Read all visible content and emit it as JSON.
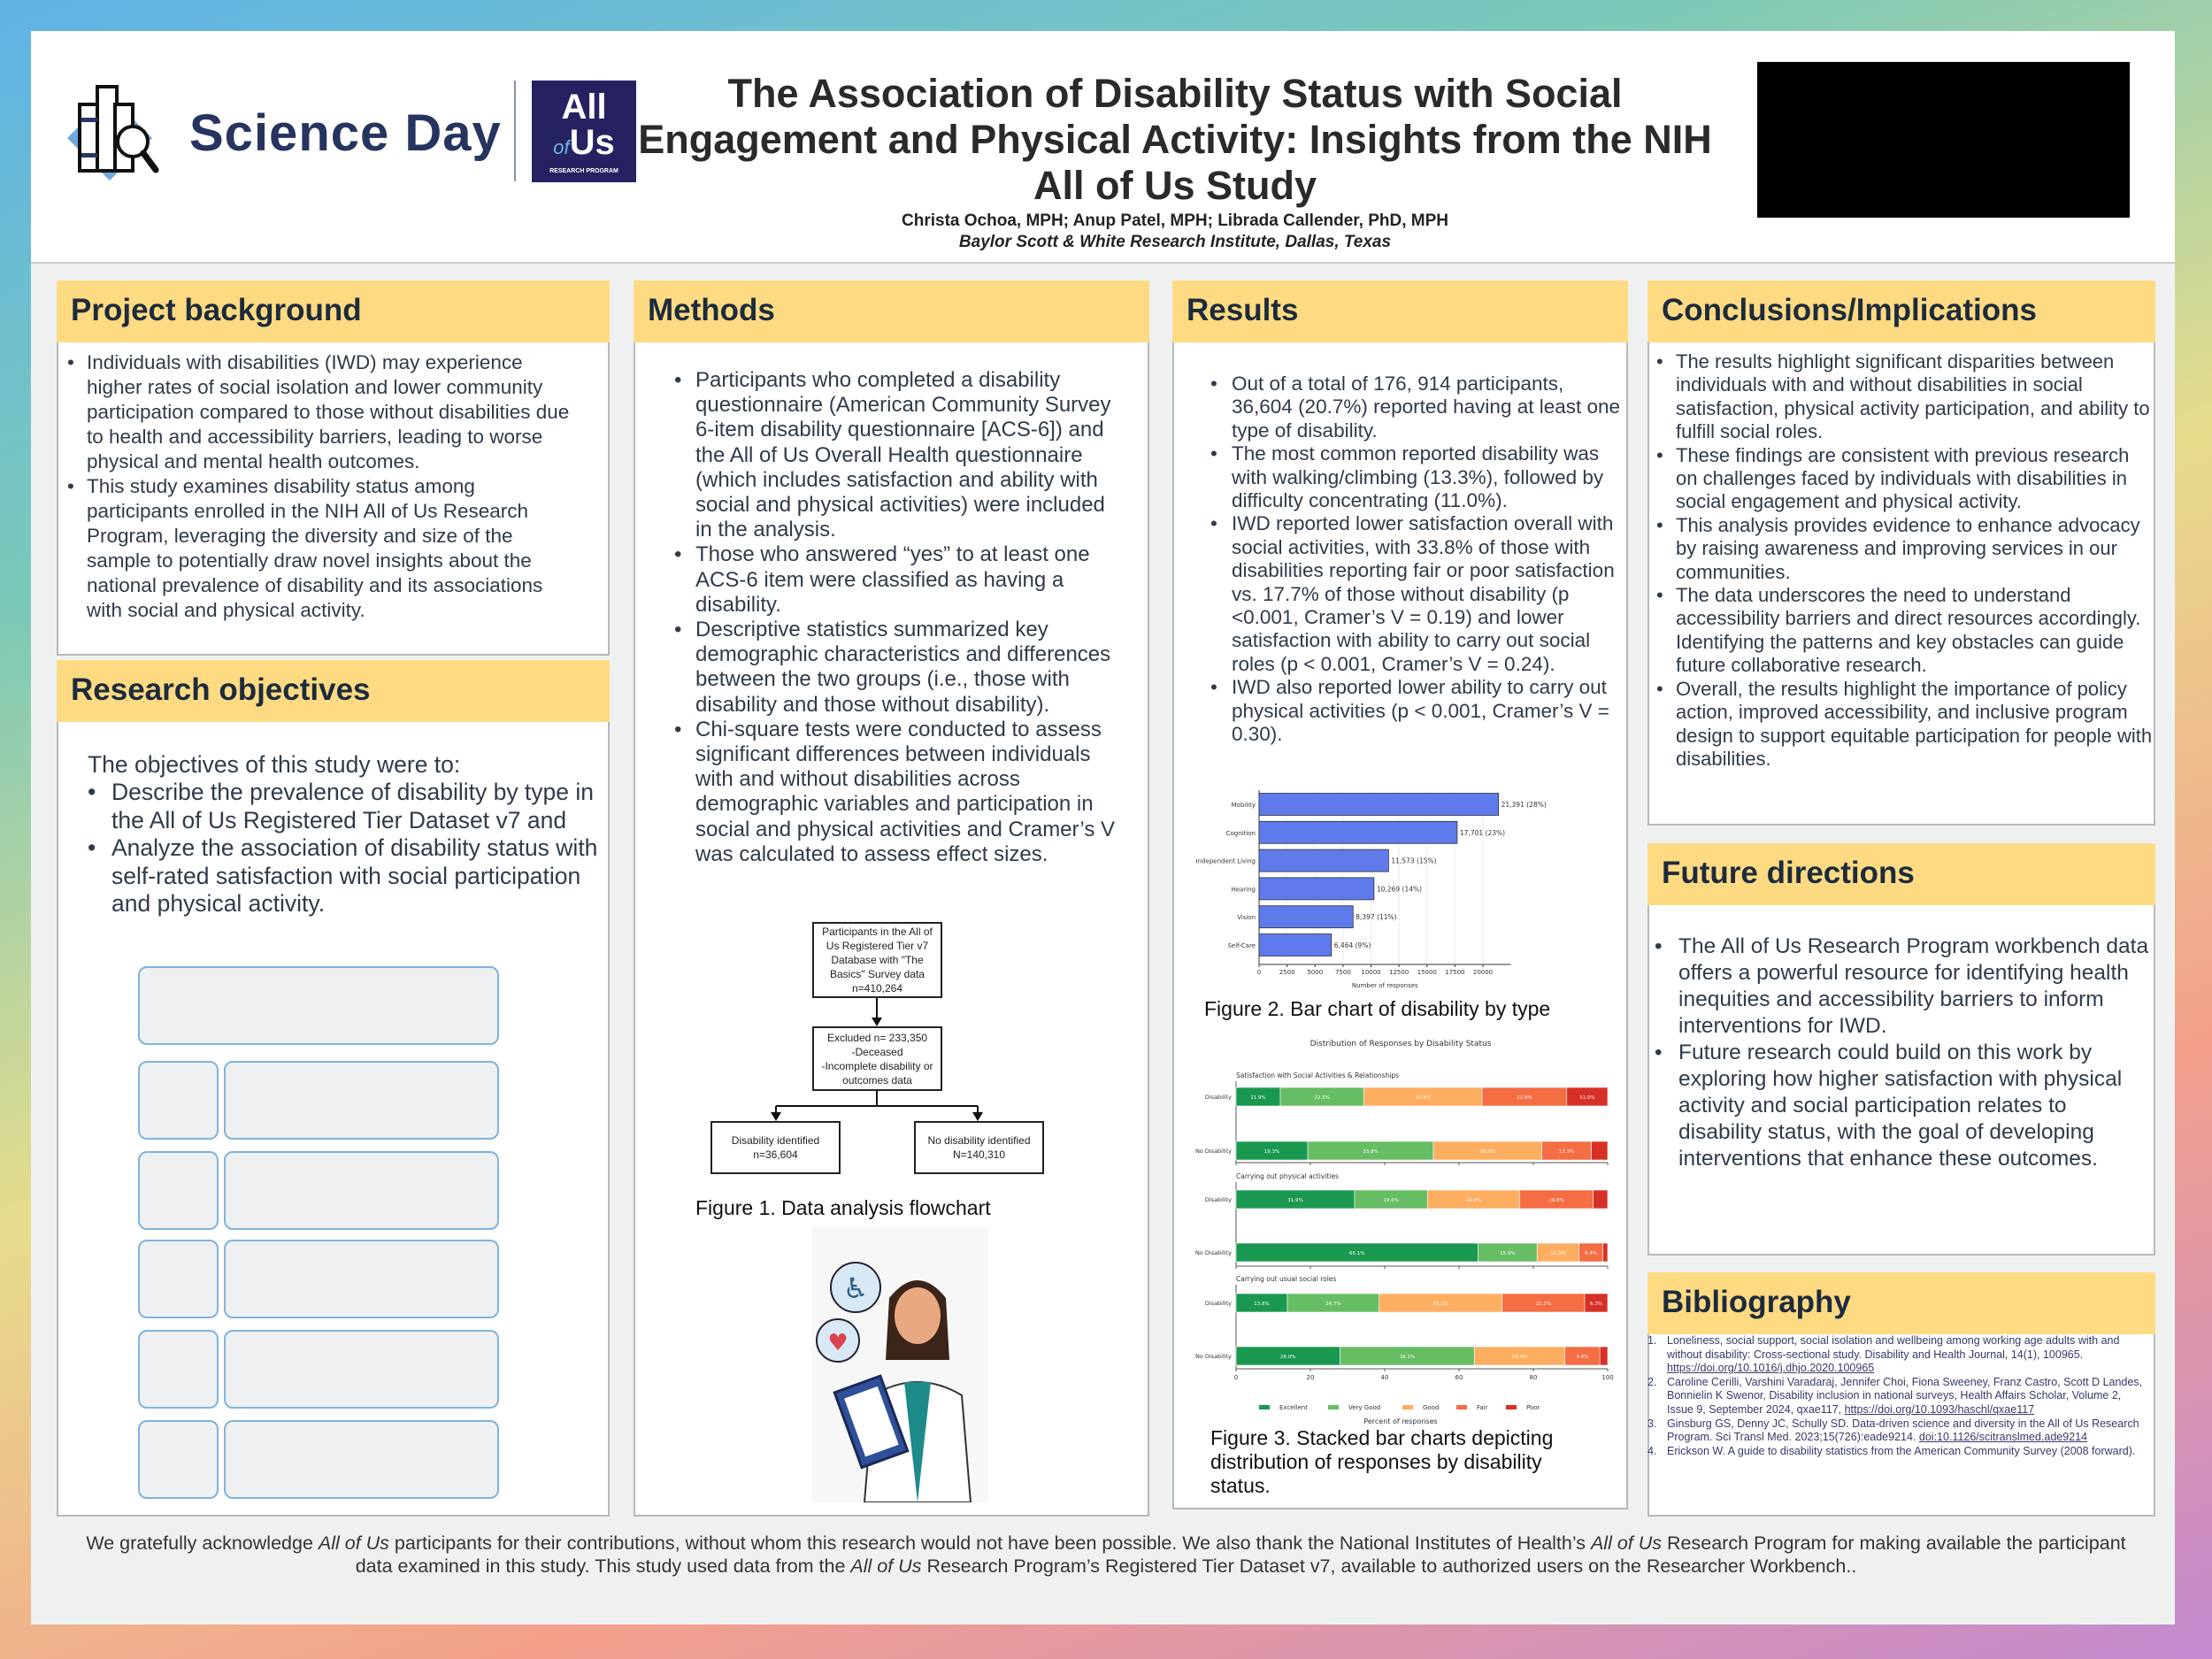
{
  "header": {
    "logo_text": "Science Day",
    "partner_logo": {
      "line1": "All",
      "line2_small": "of",
      "line2": "Us",
      "line3": "RESEARCH PROGRAM"
    },
    "title_lines": [
      "The Association of Disability Status with Social",
      "Engagement and Physical Activity: Insights from the NIH",
      "All of Us Study"
    ],
    "authors": "Christa Ochoa, MPH; Anup Patel, MPH; Librada Callender, PhD, MPH",
    "affiliation": "Baylor Scott & White Research Institute, Dallas, Texas",
    "brand_color": "#27345f",
    "partner_color": "#262262"
  },
  "project_background": {
    "title": "Project background",
    "bullets": [
      "Individuals with disabilities (IWD) may experience higher rates of social isolation and lower community participation compared to those without disabilities due to health and accessibility barriers, leading to worse physical and mental health outcomes.",
      "This study examines disability status among participants enrolled in the NIH All of Us Research Program, leveraging the diversity and size of the sample to potentially draw novel insights about the national prevalence of disability and its associations with social and physical activity."
    ]
  },
  "research_objectives": {
    "title": "Research objectives",
    "intro": "The objectives of this study were to:",
    "bullets": [
      "Describe the prevalence of disability by type in the All of Us Registered Tier Dataset v7 and",
      "Analyze the association of disability status with self-rated satisfaction with social participation and physical activity."
    ]
  },
  "methods": {
    "title": "Methods",
    "bullets": [
      "Participants who completed a disability questionnaire (American Community Survey 6-item disability questionnaire [ACS-6]) and the All of Us Overall Health questionnaire (which includes satisfaction and ability with social and physical activities) were included in the analysis.",
      "Those who answered “yes” to at least one ACS-6 item were classified as having a disability.",
      "Descriptive statistics summarized key demographic characteristics and differences between the two groups (i.e., those with disability and those without disability).",
      "Chi-square tests were conducted to assess significant differences between individuals with and without disabilities across demographic variables and participation in social and physical activities and Cramer’s V was calculated to assess effect sizes."
    ],
    "flowchart": {
      "start": [
        "Participants in the All of",
        "Us Registered Tier v7",
        "Database with \"The",
        "Basics\" Survey data",
        "n=410,264"
      ],
      "excluded": [
        "Excluded n= 233,350",
        "-Deceased",
        "-Incomplete disability or",
        "outcomes data"
      ],
      "disability": [
        "Disability identified",
        "n=36,604"
      ],
      "no_disability": [
        "No disability identified",
        "N=140,310"
      ]
    },
    "figure1_caption": "Figure 1. Data analysis flowchart"
  },
  "results": {
    "title": "Results",
    "bullets": [
      "Out of a total of 176, 914 participants, 36,604 (20.7%) reported having at least one type of disability.",
      "The most common reported disability was with walking/climbing (13.3%), followed by difficulty concentrating (11.0%).",
      " IWD reported lower satisfaction overall with social activities, with 33.8% of those with disabilities reporting fair or poor satisfaction vs. 17.7% of those without disability (p <0.001, Cramer’s V = 0.19) and lower satisfaction with ability to carry out social roles (p < 0.001, Cramer’s V = 0.24).",
      "IWD also reported lower ability to carry out physical activities (p < 0.001, Cramer’s V = 0.30)."
    ],
    "figure2_caption": "Figure 2. Bar chart of disability by type",
    "figure3_caption": "Figure 3. Stacked bar charts depicting distribution of responses by disability status."
  },
  "chart_data": [
    {
      "type": "bar",
      "orientation": "horizontal",
      "categories": [
        "Mobility",
        "Cognition",
        "Independent Living",
        "Hearing",
        "Vision",
        "Self-Care"
      ],
      "values": [
        21391,
        17701,
        11573,
        10269,
        8397,
        6464
      ],
      "data_labels": [
        "21,391 (28%)",
        "17,701 (23%)",
        "11,573 (15%)",
        "10,269 (14%)",
        "8,397 (11%)",
        "6,464 (9%)"
      ],
      "xlabel": "Number of responses",
      "ylabel": "",
      "xlim": [
        0,
        22500
      ],
      "xticks": [
        0,
        2500,
        5000,
        7500,
        10000,
        12500,
        15000,
        17500,
        20000
      ],
      "grid": true,
      "color": "#5f7aeb"
    },
    {
      "type": "bar",
      "stacked": true,
      "orientation": "horizontal",
      "title": "Distribution of Responses by Disability Status",
      "xlabel": "Percent of responses",
      "xlim": [
        0,
        100
      ],
      "xticks": [
        0,
        20,
        40,
        60,
        80,
        100
      ],
      "legend": {
        "position": "bottom",
        "entries": [
          "Excellent",
          "Very Good",
          "Good",
          "Fair",
          "Poor"
        ]
      },
      "colors": [
        "#1a9850",
        "#66bd63",
        "#fdae61",
        "#f46d43",
        "#d73027"
      ],
      "panels": [
        {
          "title": "Satisfaction with Social Activities & Relationships",
          "rows": [
            {
              "label": "Disability",
              "values": [
                11.9,
                22.5,
                31.8,
                22.8,
                11.0
              ]
            },
            {
              "label": "No Disability",
              "values": [
                19.3,
                33.8,
                29.2,
                13.3,
                4.4
              ]
            }
          ]
        },
        {
          "title": "Carrying out physical activities",
          "rows": [
            {
              "label": "Disability",
              "values": [
                31.9,
                19.6,
                24.8,
                19.8,
                3.9
              ]
            },
            {
              "label": "No Disability",
              "values": [
                65.1,
                15.9,
                11.3,
                6.4,
                1.3
              ]
            }
          ]
        },
        {
          "title": "Carrying out usual social roles",
          "rows": [
            {
              "label": "Disability",
              "values": [
                13.8,
                24.7,
                33.1,
                22.2,
                6.3
              ]
            },
            {
              "label": "No Disability",
              "values": [
                28.0,
                36.1,
                24.4,
                9.4,
                2.1
              ]
            }
          ]
        }
      ]
    }
  ],
  "conclusions": {
    "title": "Conclusions/Implications",
    "bullets": [
      "The results highlight significant disparities between individuals with and without disabilities in social satisfaction, physical activity participation, and ability to fulfill social roles.",
      "These findings are consistent with previous research on challenges faced by individuals with disabilities in social engagement and physical activity.",
      "This analysis provides evidence to enhance advocacy by raising awareness and improving services in our communities.",
      "The data underscores the need to understand accessibility barriers and direct resources accordingly. Identifying the patterns and key obstacles can guide future collaborative research.",
      "Overall, the results highlight the importance of policy action, improved accessibility, and inclusive program design to support equitable participation for people with disabilities."
    ]
  },
  "future_directions": {
    "title": "Future directions",
    "bullets": [
      "The All of Us Research Program workbench data offers a powerful resource for identifying health inequities and accessibility barriers to inform interventions for IWD.",
      "Future research could build on this work by exploring how higher satisfaction with physical activity and social participation relates to disability status, with the goal of developing interventions that enhance these outcomes."
    ]
  },
  "bibliography": {
    "title": "Bibliography",
    "items": [
      {
        "num": "1.",
        "text": "Loneliness, social support, social isolation and wellbeing among working age adults with and without disability: Cross-sectional study. Disability and Health Journal, 14(1), 100965. ",
        "link": "https://doi.org/10.1016/j.dhjo.2020.100965"
      },
      {
        "num": "2.",
        "text": "Caroline Cerilli, Varshini Varadaraj, Jennifer Choi, Fiona Sweeney, Franz Castro, Scott D Landes, Bonnielin K Swenor, Disability inclusion in national surveys, Health Affairs Scholar, Volume 2, Issue 9, September 2024, qxae117, ",
        "link": "https://doi.org/10.1093/haschl/qxae117"
      },
      {
        "num": "3.",
        "text": "Ginsburg GS, Denny JC, Schully SD. Data-driven science and diversity in the All of Us Research Program. Sci Transl Med. 2023;15(726):eade9214. ",
        "link": "doi:10.1126/scitranslmed.ade9214"
      },
      {
        "num": "4.",
        "text": "Erickson W. A guide to disability statistics from the American Community Survey (2008 forward).",
        "link": ""
      }
    ]
  },
  "footer": {
    "segments": [
      {
        "text": "We gratefully acknowledge ",
        "italic": false
      },
      {
        "text": "All of Us",
        "italic": true
      },
      {
        "text": " participants for their contributions, without whom this research would not have been possible. We also thank the National Institutes of Health’s ",
        "italic": false
      },
      {
        "text": "All of Us",
        "italic": true
      },
      {
        "text": " Research Program for making available the participant data examined in this study. This study used data from the ",
        "italic": false
      },
      {
        "text": "All of Us",
        "italic": true
      },
      {
        "text": " Research Program’s Registered Tier Dataset v7, available to authorized users on the Researcher Workbench..",
        "italic": false
      }
    ]
  },
  "section_header_color": "#fedb83"
}
